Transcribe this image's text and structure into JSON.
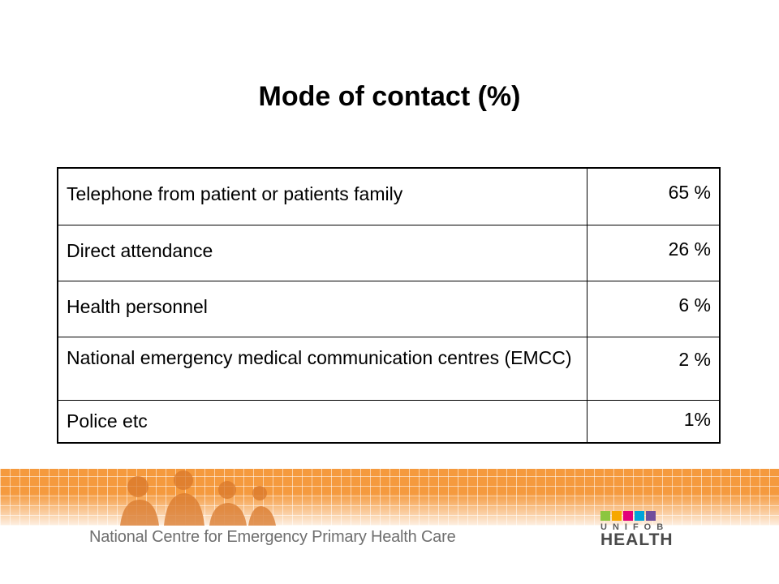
{
  "slide": {
    "title": "Mode of contact (%)"
  },
  "table": {
    "rows": [
      {
        "label": "Telephone  from patient or patients family",
        "value": "65 %"
      },
      {
        "label": "Direct attendance",
        "value": "26 %"
      },
      {
        "label": "Health personnel",
        "value": "6 %"
      },
      {
        "label": "National emergency medical communication centres (EMCC)",
        "value": "2 %"
      },
      {
        "label": "Police etc",
        "value": "1%"
      }
    ]
  },
  "footer": {
    "organization": "National Centre for Emergency Primary Health Care",
    "logo_small": "UNIFOB",
    "logo_big": "HEALTH",
    "colors": {
      "band": "#f59a3e",
      "logo_squares": [
        "#8cc63f",
        "#f7a700",
        "#e2007a",
        "#00a3d9",
        "#6f4e9c"
      ]
    }
  }
}
